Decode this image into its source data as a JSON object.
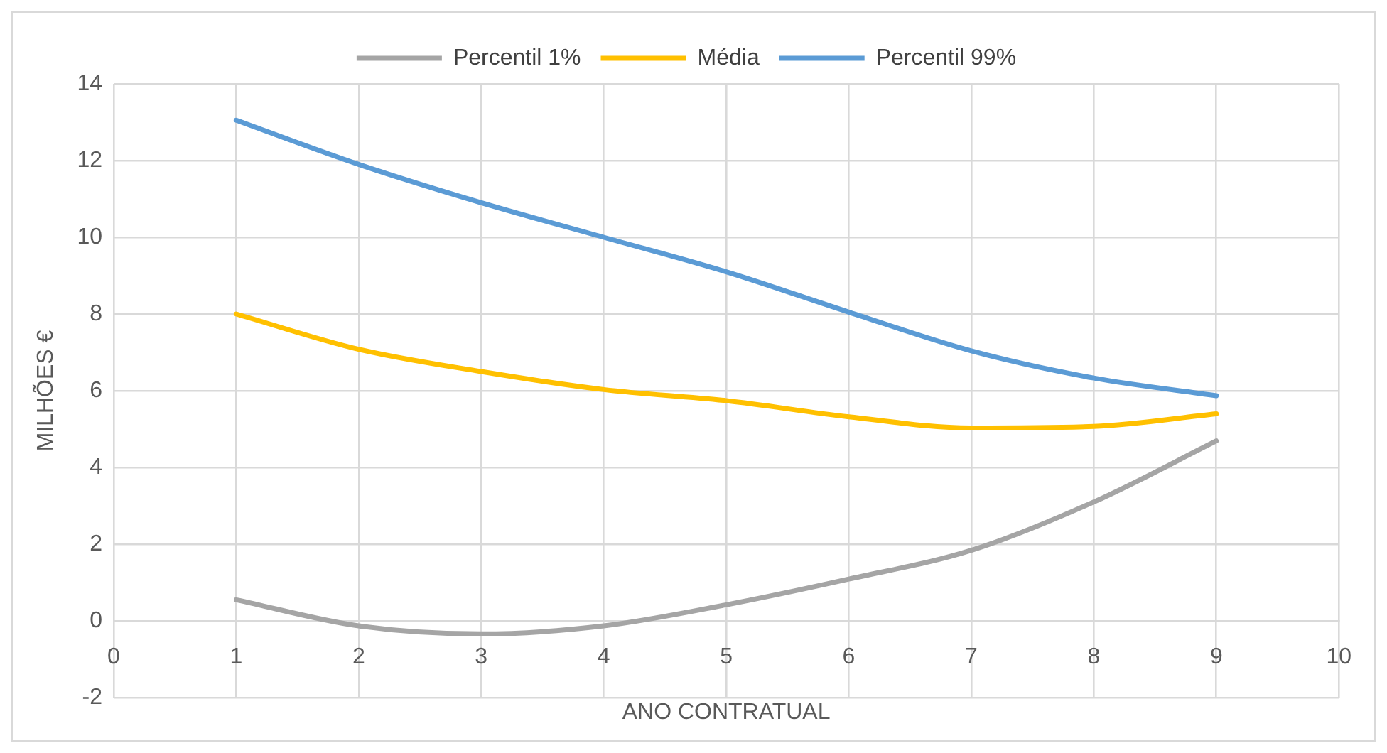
{
  "chart_data": {
    "type": "line",
    "xlabel": "ANO CONTRATUAL",
    "ylabel": "MILHÕES €",
    "x": [
      1,
      2,
      3,
      4,
      5,
      6,
      7,
      8,
      9
    ],
    "series": [
      {
        "name": "Percentil 1%",
        "color": "#a5a5a5",
        "values": [
          0.55,
          -0.13,
          -0.34,
          -0.13,
          0.42,
          1.09,
          1.84,
          3.1,
          4.69
        ]
      },
      {
        "name": "Média",
        "color": "#ffc000",
        "values": [
          8.0,
          7.08,
          6.5,
          6.03,
          5.74,
          5.32,
          5.03,
          5.07,
          5.4
        ]
      },
      {
        "name": "Percentil 99%",
        "color": "#5b9bd5",
        "values": [
          13.05,
          11.9,
          10.9,
          10.0,
          9.1,
          8.05,
          7.04,
          6.33,
          5.87
        ]
      }
    ],
    "xlim": [
      0,
      10
    ],
    "xticks": [
      0,
      1,
      2,
      3,
      4,
      5,
      6,
      7,
      8,
      9,
      10
    ],
    "ylim": [
      -2,
      14
    ],
    "yticks": [
      -2,
      0,
      2,
      4,
      6,
      8,
      10,
      12,
      14
    ],
    "grid": true,
    "legend": "top",
    "marker": "none",
    "line_style": "solid"
  }
}
